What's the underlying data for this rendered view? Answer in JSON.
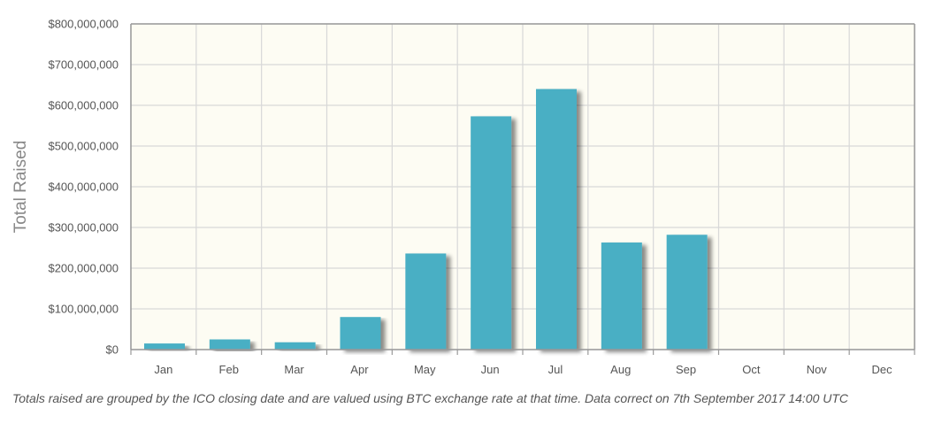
{
  "chart_data": {
    "type": "bar",
    "title": "",
    "xlabel": "",
    "ylabel": "Total Raised",
    "categories": [
      "Jan",
      "Feb",
      "Mar",
      "Apr",
      "May",
      "Jun",
      "Jul",
      "Aug",
      "Sep",
      "Oct",
      "Nov",
      "Dec"
    ],
    "values": [
      15000000,
      25000000,
      18000000,
      80000000,
      236000000,
      573000000,
      640000000,
      263000000,
      282000000,
      0,
      0,
      0
    ],
    "ylim": [
      0,
      800000000
    ],
    "yticks": [
      0,
      100000000,
      200000000,
      300000000,
      400000000,
      500000000,
      600000000,
      700000000,
      800000000
    ],
    "ytick_labels": [
      "$0",
      "$100,000,000",
      "$200,000,000",
      "$300,000,000",
      "$400,000,000",
      "$500,000,000",
      "$600,000,000",
      "$700,000,000",
      "$800,000,000"
    ],
    "grid": true,
    "colors": {
      "bar": "#4aafc4",
      "plot_background": "#fdfcf3",
      "grid": "#d8d8d8",
      "axis": "#999999"
    }
  },
  "footnote": "Totals raised are grouped by the ICO closing date and are valued using BTC exchange rate at that time. Data correct on 7th September 2017 14:00 UTC"
}
